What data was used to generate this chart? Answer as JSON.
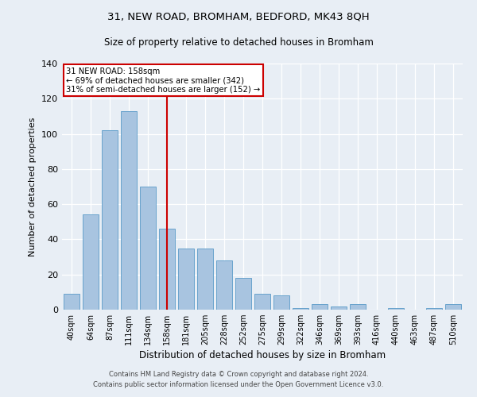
{
  "title": "31, NEW ROAD, BROMHAM, BEDFORD, MK43 8QH",
  "subtitle": "Size of property relative to detached houses in Bromham",
  "xlabel": "Distribution of detached houses by size in Bromham",
  "ylabel": "Number of detached properties",
  "categories": [
    "40sqm",
    "64sqm",
    "87sqm",
    "111sqm",
    "134sqm",
    "158sqm",
    "181sqm",
    "205sqm",
    "228sqm",
    "252sqm",
    "275sqm",
    "299sqm",
    "322sqm",
    "346sqm",
    "369sqm",
    "393sqm",
    "416sqm",
    "440sqm",
    "463sqm",
    "487sqm",
    "510sqm"
  ],
  "values": [
    9,
    54,
    102,
    113,
    70,
    46,
    35,
    35,
    28,
    18,
    9,
    8,
    1,
    3,
    2,
    3,
    0,
    1,
    0,
    1,
    3
  ],
  "bar_color": "#a8c4e0",
  "bar_edge_color": "#5a9ac8",
  "highlight_index": 5,
  "vline_color": "#cc0000",
  "annotation_line1": "31 NEW ROAD: 158sqm",
  "annotation_line2": "← 69% of detached houses are smaller (342)",
  "annotation_line3": "31% of semi-detached houses are larger (152) →",
  "annotation_box_color": "#ffffff",
  "annotation_box_edge": "#cc0000",
  "ylim": [
    0,
    140
  ],
  "yticks": [
    0,
    20,
    40,
    60,
    80,
    100,
    120,
    140
  ],
  "background_color": "#e8eef5",
  "fig_background_color": "#e8eef5",
  "footer_line1": "Contains HM Land Registry data © Crown copyright and database right 2024.",
  "footer_line2": "Contains public sector information licensed under the Open Government Licence v3.0."
}
